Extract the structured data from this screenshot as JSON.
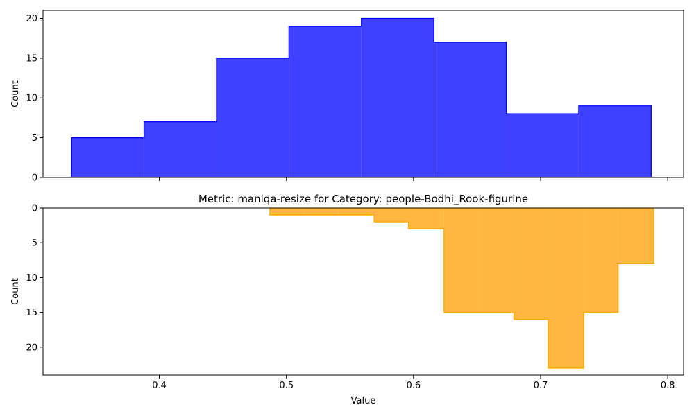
{
  "chart_data": [
    {
      "type": "histogram",
      "title": "",
      "xlabel": "",
      "ylabel": "Count",
      "xlim": [
        0.3085,
        0.8125
      ],
      "ylim": [
        0,
        21
      ],
      "yticks": [
        0,
        5,
        10,
        15,
        20
      ],
      "xticks": [
        0.4,
        0.5,
        0.6,
        0.7,
        0.8
      ],
      "show_xtick_labels": false,
      "y_inverted": false,
      "grid": false,
      "colors": {
        "fill": "#4040ff",
        "edge": "#0000ff"
      },
      "bins": [
        {
          "x0": 0.331,
          "x1": 0.388,
          "count": 5
        },
        {
          "x0": 0.388,
          "x1": 0.445,
          "count": 7
        },
        {
          "x0": 0.445,
          "x1": 0.502,
          "count": 15
        },
        {
          "x0": 0.502,
          "x1": 0.559,
          "count": 19
        },
        {
          "x0": 0.559,
          "x1": 0.616,
          "count": 20
        },
        {
          "x0": 0.616,
          "x1": 0.673,
          "count": 17
        },
        {
          "x0": 0.673,
          "x1": 0.73,
          "count": 8
        },
        {
          "x0": 0.73,
          "x1": 0.787,
          "count": 9
        }
      ]
    },
    {
      "type": "histogram",
      "title": "Metric: maniqa-resize for Category: people-Bodhi_Rook-figurine",
      "xlabel": "Value",
      "ylabel": "Count",
      "xlim": [
        0.3085,
        0.8125
      ],
      "ylim": [
        0,
        24
      ],
      "yticks": [
        0,
        5,
        10,
        15,
        20
      ],
      "xticks": [
        0.4,
        0.5,
        0.6,
        0.7,
        0.8
      ],
      "xtick_labels": [
        "0.4",
        "0.5",
        "0.6",
        "0.7",
        "0.8"
      ],
      "show_xtick_labels": true,
      "y_inverted": true,
      "grid": false,
      "colors": {
        "fill": "#ffb73f",
        "edge": "#ffa500"
      },
      "bins": [
        {
          "x0": 0.487,
          "x1": 0.514,
          "count": 1
        },
        {
          "x0": 0.514,
          "x1": 0.541,
          "count": 1
        },
        {
          "x0": 0.541,
          "x1": 0.569,
          "count": 1
        },
        {
          "x0": 0.569,
          "x1": 0.596,
          "count": 2
        },
        {
          "x0": 0.596,
          "x1": 0.624,
          "count": 3
        },
        {
          "x0": 0.624,
          "x1": 0.651,
          "count": 15
        },
        {
          "x0": 0.651,
          "x1": 0.679,
          "count": 15
        },
        {
          "x0": 0.679,
          "x1": 0.706,
          "count": 16
        },
        {
          "x0": 0.706,
          "x1": 0.734,
          "count": 23
        },
        {
          "x0": 0.734,
          "x1": 0.761,
          "count": 15
        },
        {
          "x0": 0.761,
          "x1": 0.789,
          "count": 8
        }
      ]
    }
  ]
}
